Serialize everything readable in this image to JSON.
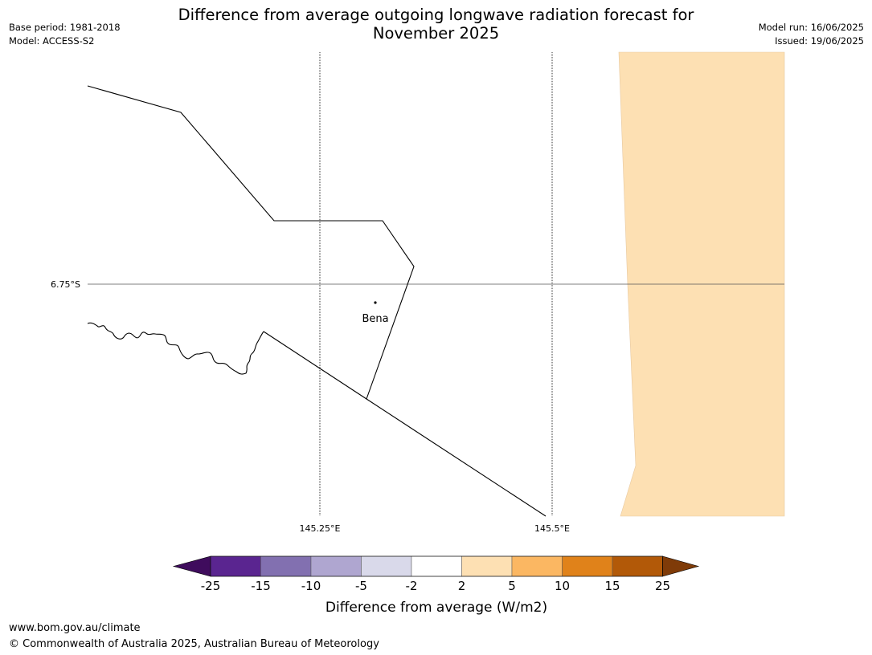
{
  "title_line1": "Difference from average outgoing longwave radiation forecast for",
  "title_line2": "November 2025",
  "meta_left": {
    "base_period": "Base period: 1981-2018",
    "model": "Model: ACCESS-S2"
  },
  "meta_right": {
    "model_run": "Model run: 16/06/2025",
    "issued": "Issued: 19/06/2025"
  },
  "map": {
    "latitude_label": "6.75°S",
    "longitude_labels": [
      "145.25°E",
      "145.5°E"
    ],
    "places": [
      {
        "name": "Bena"
      }
    ],
    "anomaly_region_color": "#fde0b3"
  },
  "colorbar": {
    "label": "Difference from average (W/m2)",
    "tick_labels": [
      "-25",
      "-15",
      "-10",
      "-5",
      "-2",
      "2",
      "5",
      "10",
      "15",
      "25"
    ],
    "colors": [
      "#3f0c5d",
      "#5a2590",
      "#8270b0",
      "#afa6d0",
      "#d9d9ea",
      "#ffffff",
      "#fde0b3",
      "#fbb762",
      "#e0821a",
      "#b25908",
      "#7f3b08"
    ]
  },
  "footer": {
    "website": "www.bom.gov.au/climate",
    "copyright": "© Commonwealth of Australia 2025, Australian Bureau of Meteorology"
  }
}
